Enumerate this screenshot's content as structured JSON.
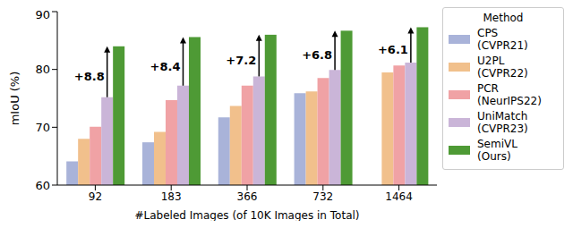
{
  "chart_data": {
    "type": "bar",
    "categories": [
      "92",
      "183",
      "366",
      "732",
      "1464"
    ],
    "series": [
      {
        "name": "CPS (CVPR21)",
        "color": "#a9b3d9",
        "values": [
          64.1,
          67.4,
          71.7,
          75.9,
          null
        ]
      },
      {
        "name": "U2PL (CVPR22)",
        "color": "#f1c08c",
        "values": [
          68.0,
          69.2,
          73.7,
          76.2,
          79.5
        ]
      },
      {
        "name": "PCR (NeurIPS22)",
        "color": "#f0a2a5",
        "values": [
          70.1,
          74.7,
          77.2,
          78.5,
          80.7
        ]
      },
      {
        "name": "UniMatch (CVPR23)",
        "color": "#cab5d8",
        "values": [
          75.2,
          77.2,
          78.8,
          79.9,
          81.2
        ]
      },
      {
        "name": "SemiVL (Ours)",
        "color": "#4e9a35",
        "values": [
          84.0,
          85.6,
          86.0,
          86.7,
          87.3
        ]
      }
    ],
    "ylim": [
      60,
      90
    ],
    "yticks": [
      60,
      70,
      80,
      90
    ],
    "y_label": "mIoU (%)",
    "x_label": "#Labeled Images (of 10K Images in Total)",
    "legend_title": "Method",
    "legend": "right",
    "grid": false,
    "annotations": [
      {
        "category": "92",
        "text": "+8.8"
      },
      {
        "category": "183",
        "text": "+8.4"
      },
      {
        "category": "366",
        "text": "+7.2"
      },
      {
        "category": "732",
        "text": "+6.8"
      },
      {
        "category": "1464",
        "text": "+6.1"
      }
    ]
  }
}
